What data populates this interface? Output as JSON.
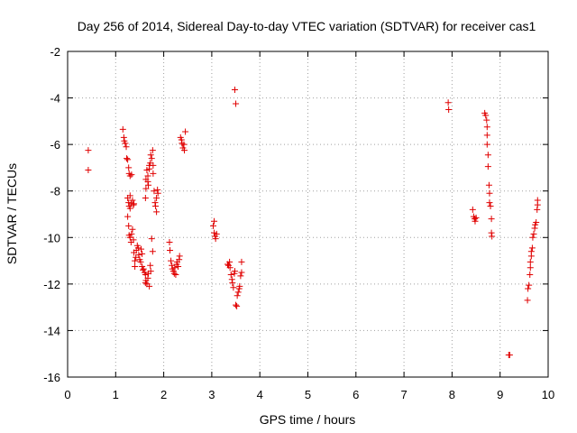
{
  "chart_data": {
    "type": "scatter",
    "title": "Day 256 of 2014, Sidereal Day-to-day VTEC variation (SDTVAR) for receiver cas1",
    "xlabel": "GPS time / hours",
    "ylabel": "SDTVAR / TECUs",
    "xlim": [
      0,
      10
    ],
    "ylim": [
      -16,
      -2
    ],
    "xticks": [
      "0",
      "1",
      "2",
      "3",
      "4",
      "5",
      "6",
      "7",
      "8",
      "9",
      "10"
    ],
    "yticks": [
      "-2",
      "-4",
      "-6",
      "-8",
      "-10",
      "-12",
      "-14",
      "-16"
    ],
    "grid": true,
    "marker": "+",
    "color": "#e00000",
    "series": [
      {
        "name": "cas1",
        "points": [
          [
            0.43,
            -6.25
          ],
          [
            0.43,
            -7.1
          ],
          [
            1.15,
            -5.35
          ],
          [
            1.17,
            -5.7
          ],
          [
            1.18,
            -5.85
          ],
          [
            1.2,
            -5.95
          ],
          [
            1.22,
            -6.1
          ],
          [
            1.23,
            -6.6
          ],
          [
            1.25,
            -6.65
          ],
          [
            1.27,
            -7.0
          ],
          [
            1.28,
            -7.25
          ],
          [
            1.3,
            -7.35
          ],
          [
            1.33,
            -7.3
          ],
          [
            1.25,
            -8.3
          ],
          [
            1.27,
            -8.5
          ],
          [
            1.28,
            -8.65
          ],
          [
            1.3,
            -8.2
          ],
          [
            1.3,
            -8.75
          ],
          [
            1.32,
            -8.55
          ],
          [
            1.35,
            -8.4
          ],
          [
            1.37,
            -8.6
          ],
          [
            1.38,
            -8.55
          ],
          [
            1.25,
            -9.1
          ],
          [
            1.27,
            -9.5
          ],
          [
            1.28,
            -9.9
          ],
          [
            1.3,
            -10.0
          ],
          [
            1.32,
            -10.2
          ],
          [
            1.33,
            -9.85
          ],
          [
            1.35,
            -9.65
          ],
          [
            1.37,
            -10.1
          ],
          [
            1.38,
            -10.65
          ],
          [
            1.4,
            -11.0
          ],
          [
            1.4,
            -11.25
          ],
          [
            1.42,
            -10.85
          ],
          [
            1.43,
            -10.55
          ],
          [
            1.45,
            -10.35
          ],
          [
            1.47,
            -10.45
          ],
          [
            1.48,
            -10.75
          ],
          [
            1.5,
            -10.95
          ],
          [
            1.52,
            -11.05
          ],
          [
            1.53,
            -10.5
          ],
          [
            1.55,
            -10.7
          ],
          [
            1.55,
            -11.25
          ],
          [
            1.57,
            -11.4
          ],
          [
            1.58,
            -11.35
          ],
          [
            1.6,
            -11.5
          ],
          [
            1.62,
            -11.6
          ],
          [
            1.63,
            -11.85
          ],
          [
            1.65,
            -12.0
          ],
          [
            1.67,
            -11.75
          ],
          [
            1.68,
            -11.55
          ],
          [
            1.7,
            -12.1
          ],
          [
            1.72,
            -11.2
          ],
          [
            1.73,
            -11.45
          ],
          [
            1.62,
            -11.95
          ],
          [
            1.62,
            -8.3
          ],
          [
            1.63,
            -7.9
          ],
          [
            1.63,
            -7.5
          ],
          [
            1.65,
            -7.1
          ],
          [
            1.67,
            -7.35
          ],
          [
            1.67,
            -7.6
          ],
          [
            1.68,
            -7.75
          ],
          [
            1.7,
            -6.9
          ],
          [
            1.7,
            -7.05
          ],
          [
            1.72,
            -6.8
          ],
          [
            1.73,
            -6.45
          ],
          [
            1.75,
            -6.6
          ],
          [
            1.77,
            -6.25
          ],
          [
            1.78,
            -6.9
          ],
          [
            1.78,
            -7.25
          ],
          [
            1.75,
            -10.05
          ],
          [
            1.77,
            -10.6
          ],
          [
            1.8,
            -8.0
          ],
          [
            1.82,
            -8.5
          ],
          [
            1.83,
            -8.65
          ],
          [
            1.85,
            -8.3
          ],
          [
            1.85,
            -8.9
          ],
          [
            1.87,
            -7.95
          ],
          [
            1.88,
            -8.1
          ],
          [
            2.12,
            -10.2
          ],
          [
            2.13,
            -10.55
          ],
          [
            2.15,
            -11.0
          ],
          [
            2.17,
            -11.2
          ],
          [
            2.18,
            -11.35
          ],
          [
            2.2,
            -11.45
          ],
          [
            2.22,
            -11.55
          ],
          [
            2.23,
            -11.3
          ],
          [
            2.25,
            -11.6
          ],
          [
            2.27,
            -11.15
          ],
          [
            2.28,
            -11.05
          ],
          [
            2.3,
            -11.25
          ],
          [
            2.32,
            -10.95
          ],
          [
            2.33,
            -10.8
          ],
          [
            2.35,
            -5.7
          ],
          [
            2.37,
            -5.8
          ],
          [
            2.38,
            -5.95
          ],
          [
            2.4,
            -6.15
          ],
          [
            2.42,
            -6.0
          ],
          [
            2.43,
            -6.25
          ],
          [
            2.45,
            -5.45
          ],
          [
            3.03,
            -9.5
          ],
          [
            3.05,
            -9.3
          ],
          [
            3.05,
            -9.8
          ],
          [
            3.07,
            -9.95
          ],
          [
            3.08,
            -10.05
          ],
          [
            3.1,
            -9.85
          ],
          [
            3.33,
            -11.15
          ],
          [
            3.35,
            -11.2
          ],
          [
            3.37,
            -11.05
          ],
          [
            3.38,
            -11.3
          ],
          [
            3.4,
            -11.6
          ],
          [
            3.42,
            -11.8
          ],
          [
            3.43,
            -11.95
          ],
          [
            3.45,
            -12.15
          ],
          [
            3.47,
            -11.55
          ],
          [
            3.48,
            -11.45
          ],
          [
            3.5,
            -12.9
          ],
          [
            3.52,
            -12.95
          ],
          [
            3.53,
            -12.5
          ],
          [
            3.55,
            -12.35
          ],
          [
            3.57,
            -12.2
          ],
          [
            3.58,
            -12.1
          ],
          [
            3.6,
            -11.65
          ],
          [
            3.62,
            -11.05
          ],
          [
            3.62,
            -11.5
          ],
          [
            3.48,
            -3.65
          ],
          [
            3.5,
            -4.25
          ],
          [
            7.92,
            -4.2
          ],
          [
            7.93,
            -4.5
          ],
          [
            8.43,
            -8.8
          ],
          [
            8.45,
            -9.1
          ],
          [
            8.47,
            -9.2
          ],
          [
            8.48,
            -9.3
          ],
          [
            8.5,
            -9.15
          ],
          [
            8.68,
            -4.65
          ],
          [
            8.7,
            -4.75
          ],
          [
            8.72,
            -4.95
          ],
          [
            8.73,
            -5.25
          ],
          [
            8.73,
            -5.6
          ],
          [
            8.73,
            -6.0
          ],
          [
            8.75,
            -6.45
          ],
          [
            8.75,
            -6.95
          ],
          [
            8.77,
            -7.75
          ],
          [
            8.78,
            -8.1
          ],
          [
            8.78,
            -8.5
          ],
          [
            8.8,
            -8.65
          ],
          [
            8.82,
            -9.2
          ],
          [
            8.82,
            -9.8
          ],
          [
            8.83,
            -9.95
          ],
          [
            9.18,
            -15.05
          ],
          [
            9.2,
            -15.05
          ],
          [
            9.57,
            -12.7
          ],
          [
            9.58,
            -12.2
          ],
          [
            9.6,
            -12.05
          ],
          [
            9.62,
            -11.6
          ],
          [
            9.63,
            -11.3
          ],
          [
            9.63,
            -11.05
          ],
          [
            9.65,
            -10.8
          ],
          [
            9.65,
            -10.6
          ],
          [
            9.67,
            -10.45
          ],
          [
            9.68,
            -10.0
          ],
          [
            9.7,
            -9.85
          ],
          [
            9.72,
            -9.6
          ],
          [
            9.73,
            -9.45
          ],
          [
            9.75,
            -9.35
          ],
          [
            9.77,
            -8.8
          ],
          [
            9.78,
            -8.6
          ],
          [
            9.78,
            -8.4
          ]
        ]
      }
    ]
  }
}
